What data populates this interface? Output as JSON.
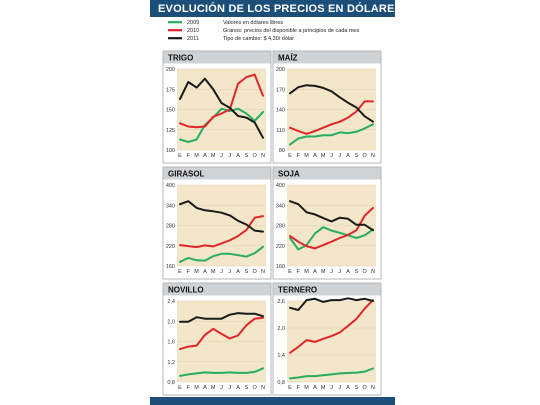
{
  "title": "EVOLUCIÓN DE LOS PRECIOS EN DÓLARES",
  "colors": {
    "2009": "#27ae60",
    "2010": "#e0262b",
    "2011": "#1a1a1a",
    "accent": "#1c4e7a"
  },
  "legend": {
    "series": [
      {
        "name": "2009",
        "color": "#27ae60"
      },
      {
        "name": "2010",
        "color": "#e0262b"
      },
      {
        "name": "2011",
        "color": "#1a1a1a"
      }
    ],
    "notes": [
      "Valores en dólares libres",
      "Granos: precios del disponible a principios de cada mes",
      "Tipo de cambio: $ 4,30/ dólar"
    ]
  },
  "chart_data": [
    {
      "type": "line",
      "title": "TRIGO",
      "x": [
        "E",
        "F",
        "M",
        "A",
        "M",
        "J",
        "J",
        "A",
        "S",
        "O",
        "N"
      ],
      "ylim": [
        100,
        200
      ],
      "yticks": [
        100,
        125,
        150,
        175,
        200
      ],
      "ytick_labels": [
        "100",
        "125",
        "150",
        "175",
        "200"
      ],
      "series": [
        {
          "name": "2009",
          "values": [
            113,
            110,
            113,
            131,
            140,
            151,
            148,
            151,
            145,
            136,
            147
          ]
        },
        {
          "name": "2010",
          "values": [
            133,
            129,
            128,
            129,
            141,
            145,
            150,
            182,
            190,
            193,
            167
          ]
        },
        {
          "name": "2011",
          "values": [
            163,
            184,
            177,
            188,
            175,
            158,
            152,
            142,
            140,
            134,
            115
          ]
        }
      ]
    },
    {
      "type": "line",
      "title": "MAÍZ",
      "x": [
        "E",
        "F",
        "M",
        "A",
        "M",
        "J",
        "J",
        "A",
        "S",
        "O",
        "N"
      ],
      "ylim": [
        80,
        200
      ],
      "yticks": [
        80,
        110,
        140,
        170,
        200
      ],
      "ytick_labels": [
        "80",
        "110",
        "140",
        "170",
        "200"
      ],
      "series": [
        {
          "name": "2009",
          "values": [
            88,
            97,
            100,
            100,
            102,
            102,
            106,
            105,
            107,
            112,
            118
          ]
        },
        {
          "name": "2010",
          "values": [
            113,
            108,
            104,
            108,
            113,
            118,
            122,
            128,
            137,
            152,
            152
          ]
        },
        {
          "name": "2011",
          "values": [
            164,
            173,
            176,
            175,
            172,
            167,
            158,
            150,
            143,
            130,
            122
          ]
        }
      ]
    },
    {
      "type": "line",
      "title": "GIRASOL",
      "x": [
        "E",
        "F",
        "M",
        "A",
        "M",
        "J",
        "J",
        "A",
        "S",
        "O",
        "N"
      ],
      "ylim": [
        160,
        400
      ],
      "yticks": [
        160,
        220,
        280,
        340,
        400
      ],
      "ytick_labels": [
        "160",
        "220",
        "280",
        "340",
        "400"
      ],
      "series": [
        {
          "name": "2009",
          "values": [
            172,
            184,
            177,
            176,
            189,
            196,
            196,
            192,
            188,
            198,
            217
          ]
        },
        {
          "name": "2010",
          "values": [
            222,
            219,
            216,
            221,
            218,
            227,
            236,
            249,
            267,
            303,
            308
          ]
        },
        {
          "name": "2011",
          "values": [
            343,
            352,
            332,
            325,
            322,
            318,
            310,
            294,
            283,
            265,
            262
          ]
        }
      ]
    },
    {
      "type": "line",
      "title": "SOJA",
      "x": [
        "E",
        "F",
        "M",
        "A",
        "M",
        "J",
        "J",
        "A",
        "S",
        "O",
        "N"
      ],
      "ylim": [
        160,
        400
      ],
      "yticks": [
        160,
        220,
        280,
        340,
        400
      ],
      "ytick_labels": [
        "160",
        "220",
        "280",
        "340",
        "400"
      ],
      "series": [
        {
          "name": "2009",
          "values": [
            243,
            209,
            222,
            256,
            275,
            265,
            258,
            251,
            243,
            251,
            268
          ]
        },
        {
          "name": "2010",
          "values": [
            249,
            232,
            219,
            212,
            222,
            232,
            243,
            252,
            266,
            309,
            332
          ]
        },
        {
          "name": "2011",
          "values": [
            352,
            343,
            319,
            313,
            302,
            292,
            303,
            300,
            282,
            282,
            266
          ]
        }
      ]
    },
    {
      "type": "line",
      "title": "NOVILLO",
      "x": [
        "E",
        "F",
        "M",
        "A",
        "M",
        "J",
        "J",
        "A",
        "S",
        "O",
        "N"
      ],
      "ylim": [
        0.8,
        2.4
      ],
      "yticks": [
        0.8,
        1.2,
        1.6,
        2.0,
        2.4
      ],
      "ytick_labels": [
        "0,8",
        "1,2",
        "1,6",
        "2,0",
        "2,4"
      ],
      "series": [
        {
          "name": "2009",
          "values": [
            0.92,
            0.95,
            0.97,
            0.99,
            0.98,
            0.98,
            0.99,
            0.98,
            0.98,
            1.0,
            1.07
          ]
        },
        {
          "name": "2010",
          "values": [
            1.45,
            1.5,
            1.52,
            1.73,
            1.85,
            1.75,
            1.66,
            1.72,
            1.92,
            2.05,
            2.07
          ]
        },
        {
          "name": "2011",
          "values": [
            1.99,
            1.99,
            2.08,
            2.05,
            2.05,
            2.05,
            2.13,
            2.16,
            2.15,
            2.15,
            2.1
          ]
        }
      ]
    },
    {
      "type": "line",
      "title": "TERNERO",
      "x": [
        "E",
        "F",
        "M",
        "A",
        "M",
        "J",
        "J",
        "A",
        "S",
        "O",
        "N"
      ],
      "ylim": [
        0.8,
        2.6
      ],
      "yticks": [
        0.8,
        1.4,
        2.0,
        2.6
      ],
      "ytick_labels": [
        "0,8",
        "1,4",
        "2,0",
        "2,6"
      ],
      "series": [
        {
          "name": "2009",
          "values": [
            0.88,
            0.9,
            0.93,
            0.93,
            0.95,
            0.97,
            0.99,
            1.0,
            1.01,
            1.03,
            1.1
          ]
        },
        {
          "name": "2010",
          "values": [
            1.45,
            1.58,
            1.73,
            1.69,
            1.76,
            1.82,
            1.9,
            2.05,
            2.2,
            2.43,
            2.62
          ]
        },
        {
          "name": "2011",
          "values": [
            2.45,
            2.4,
            2.62,
            2.65,
            2.58,
            2.62,
            2.62,
            2.66,
            2.62,
            2.65,
            2.6
          ]
        }
      ]
    }
  ]
}
